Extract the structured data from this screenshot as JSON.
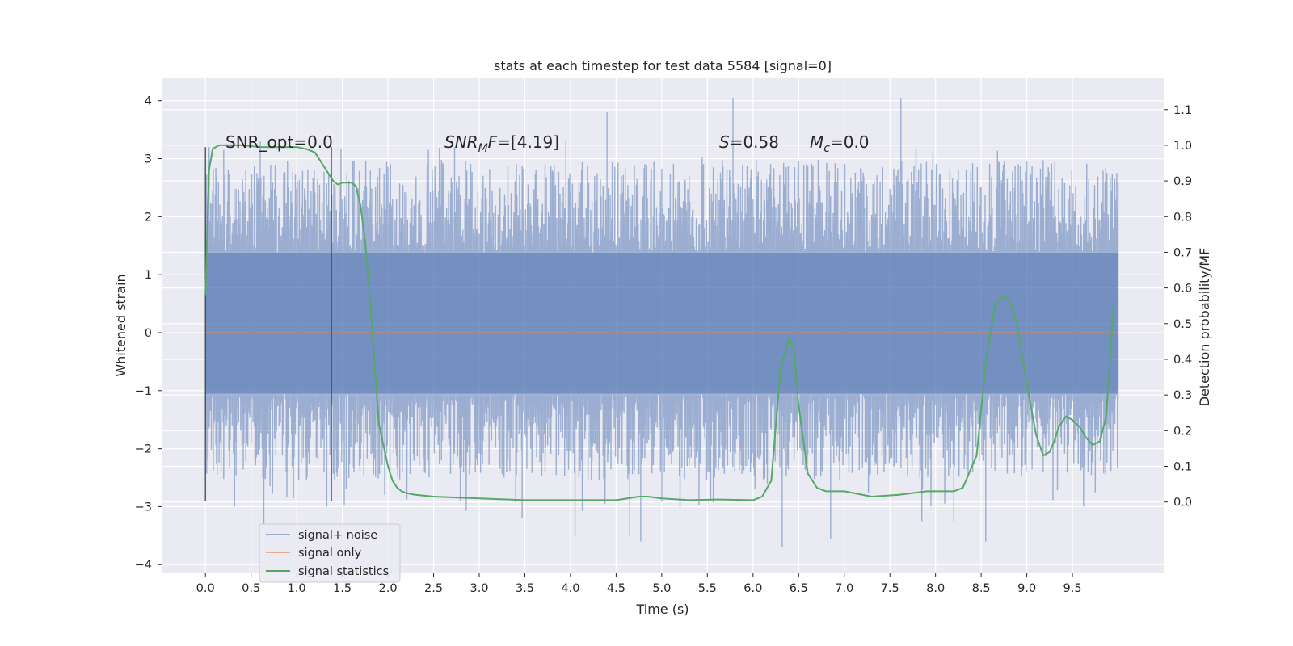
{
  "chart_data": {
    "type": "line",
    "title": "stats at each timestep for test data 5584 [signal=0]",
    "xlabel": "Time (s)",
    "ylabel_left": "Whitened strain",
    "ylabel_right": "Detection probability/MF",
    "xlim": [
      -0.48,
      10.5
    ],
    "ylim_left": [
      -4.15,
      4.4
    ],
    "ylim_right": [
      -0.2,
      1.19
    ],
    "x_ticks": [
      0.0,
      0.5,
      1.0,
      1.5,
      2.0,
      2.5,
      3.0,
      3.5,
      4.0,
      4.5,
      5.0,
      5.5,
      6.0,
      6.5,
      7.0,
      7.5,
      8.0,
      8.5,
      9.0,
      9.5
    ],
    "x_tick_labels": [
      "0.0",
      "0.5",
      "1.0",
      "1.5",
      "2.0",
      "2.5",
      "3.0",
      "3.5",
      "4.0",
      "4.5",
      "5.0",
      "5.5",
      "6.0",
      "6.5",
      "7.0",
      "7.5",
      "8.0",
      "8.5",
      "9.0",
      "9.5"
    ],
    "y_left_ticks": [
      -4,
      -3,
      -2,
      -1,
      0,
      1,
      2,
      3,
      4
    ],
    "y_left_tick_labels": [
      "−4",
      "−3",
      "−2",
      "−1",
      "0",
      "1",
      "2",
      "3",
      "4"
    ],
    "y_right_ticks": [
      0.0,
      0.1,
      0.2,
      0.3,
      0.4,
      0.5,
      0.6,
      0.7,
      0.8,
      0.9,
      1.0,
      1.1
    ],
    "y_right_tick_labels": [
      "0.0",
      "0.1",
      "0.2",
      "0.3",
      "0.4",
      "0.5",
      "0.6",
      "0.7",
      "0.8",
      "0.9",
      "1.0",
      "1.1"
    ],
    "grid": true,
    "legend_position": "bottom-left",
    "legend": [
      "signal+ noise",
      "signal only",
      "signal statistics"
    ],
    "annotations": {
      "snr_opt": "SNR_opt=0.0",
      "snr_mf_base": "SNR",
      "snr_mf_sub": "M",
      "snr_mf_rest": "F=[4.19]",
      "s_var": "S",
      "s_val": "=0.58",
      "mc_var": "M",
      "mc_sub": "c",
      "mc_val": "=0.0"
    },
    "markers": [
      {
        "x": 0.0,
        "y_from": -2.9,
        "y_to": 3.2
      },
      {
        "x": 1.38,
        "y_from": -2.9,
        "y_to": 3.2
      }
    ],
    "series": [
      {
        "name": "signal+ noise",
        "axis": "left",
        "color": "#4c72b0",
        "x_range": [
          0.0,
          10.0
        ],
        "core_band": [
          -1.05,
          1.38
        ],
        "notable_spikes": [
          {
            "x": 0.04,
            "y": 3.2
          },
          {
            "x": 0.2,
            "y": 3.15
          },
          {
            "x": 0.6,
            "y": 3.3
          },
          {
            "x": 0.64,
            "y": -3.3
          },
          {
            "x": 0.32,
            "y": -3.0
          },
          {
            "x": 1.33,
            "y": -3.0
          },
          {
            "x": 2.73,
            "y": 3.2
          },
          {
            "x": 3.47,
            "y": -3.2
          },
          {
            "x": 4.05,
            "y": -3.5
          },
          {
            "x": 4.4,
            "y": 3.8
          },
          {
            "x": 4.65,
            "y": -3.5
          },
          {
            "x": 4.77,
            "y": -3.6
          },
          {
            "x": 5.78,
            "y": 4.05
          },
          {
            "x": 6.32,
            "y": -3.7
          },
          {
            "x": 6.85,
            "y": -3.55
          },
          {
            "x": 7.62,
            "y": 4.05
          },
          {
            "x": 7.85,
            "y": -3.25
          },
          {
            "x": 8.2,
            "y": -3.25
          },
          {
            "x": 8.55,
            "y": -3.6
          },
          {
            "x": 3.95,
            "y": 3.3
          }
        ]
      },
      {
        "name": "signal only",
        "axis": "left",
        "color": "#dd8452",
        "x": [
          0.0,
          10.0
        ],
        "y": [
          0.0,
          0.0
        ]
      },
      {
        "name": "signal statistics",
        "axis": "right",
        "color": "#55a868",
        "x": [
          0.0,
          0.04,
          0.08,
          0.15,
          0.25,
          0.4,
          0.6,
          0.8,
          1.0,
          1.1,
          1.2,
          1.3,
          1.35,
          1.4,
          1.45,
          1.5,
          1.6,
          1.65,
          1.7,
          1.75,
          1.8,
          1.85,
          1.9,
          2.0,
          2.05,
          2.1,
          2.15,
          2.2,
          2.3,
          2.5,
          3.0,
          3.5,
          4.0,
          4.5,
          4.75,
          4.85,
          5.0,
          5.3,
          5.6,
          6.0,
          6.1,
          6.2,
          6.3,
          6.35,
          6.4,
          6.45,
          6.5,
          6.6,
          6.7,
          6.8,
          7.0,
          7.3,
          7.6,
          7.9,
          8.2,
          8.3,
          8.45,
          8.55,
          8.65,
          8.75,
          8.82,
          8.9,
          9.0,
          9.1,
          9.18,
          9.25,
          9.3,
          9.35,
          9.43,
          9.5,
          9.58,
          9.65,
          9.72,
          9.8,
          9.87,
          9.95
        ],
        "y": [
          0.58,
          0.93,
          0.99,
          1.0,
          1.0,
          1.0,
          0.995,
          0.995,
          0.995,
          0.99,
          0.98,
          0.94,
          0.92,
          0.9,
          0.89,
          0.895,
          0.895,
          0.885,
          0.83,
          0.73,
          0.58,
          0.4,
          0.22,
          0.1,
          0.06,
          0.04,
          0.03,
          0.025,
          0.02,
          0.015,
          0.01,
          0.005,
          0.005,
          0.005,
          0.015,
          0.015,
          0.01,
          0.005,
          0.007,
          0.005,
          0.015,
          0.06,
          0.37,
          0.42,
          0.46,
          0.42,
          0.27,
          0.08,
          0.04,
          0.03,
          0.03,
          0.015,
          0.02,
          0.03,
          0.03,
          0.04,
          0.13,
          0.39,
          0.55,
          0.58,
          0.56,
          0.49,
          0.33,
          0.19,
          0.13,
          0.14,
          0.17,
          0.21,
          0.24,
          0.23,
          0.21,
          0.18,
          0.16,
          0.17,
          0.24,
          0.55
        ]
      }
    ]
  }
}
